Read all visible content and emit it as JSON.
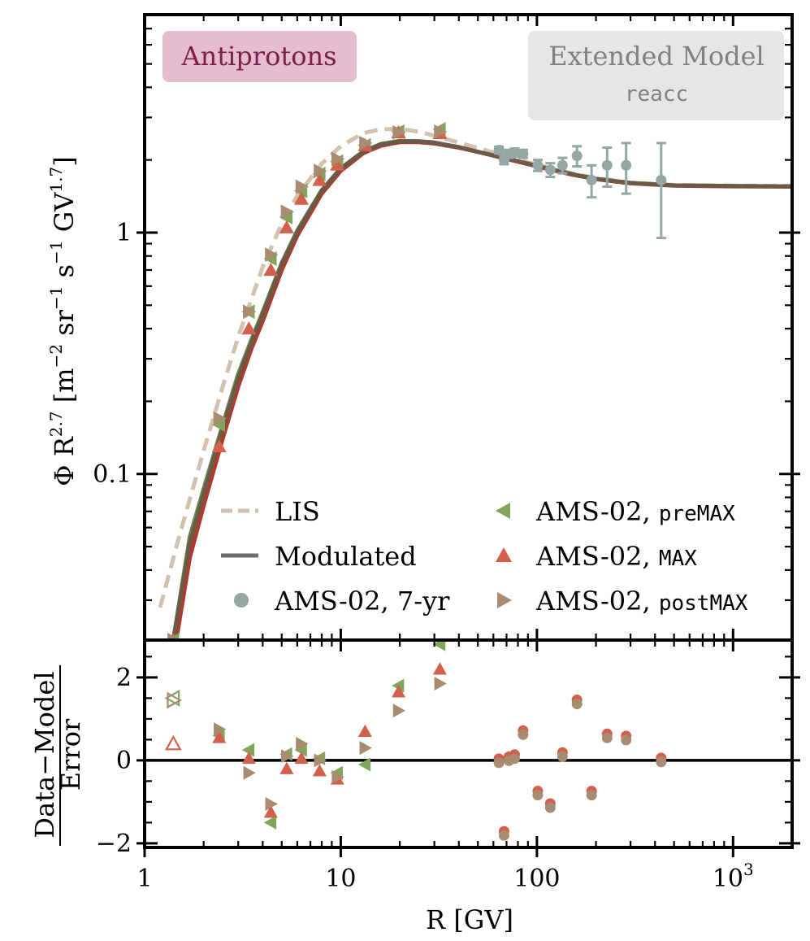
{
  "chart_data": {
    "type": "scatter",
    "badges": {
      "species": "Antiprotons",
      "model_line1": "Extended Model",
      "model_line2": "reacc"
    },
    "colors": {
      "lis": "#d4c0ae",
      "modulated_pre": "#6e8c50",
      "modulated_max": "#b03a2e",
      "modulated_post": "#6b5a48",
      "ams7": "#94a6a6",
      "premax": "#7fa65a",
      "max": "#d2604c",
      "postmax": "#a88c72",
      "badge_species_bg": "#e6bccf",
      "badge_species_fg": "#7a1f48",
      "badge_model_bg": "#e6e6e6",
      "badge_model_fg": "#808080"
    },
    "top_panel": {
      "ylabel": "Φ R^2.7 [m^-2 sr^-1 s^-1 GV^1.7]",
      "yscale": "log",
      "ylim": [
        0.0205,
        8.0
      ],
      "y_tick_labels": [
        "0.1",
        "1"
      ],
      "y_tick_values": [
        0.1,
        1
      ]
    },
    "bottom_panel": {
      "ylabel": "Data−Model / Error",
      "ylabel_numerator": "Data−Model",
      "ylabel_denominator": "Error",
      "ylim": [
        -2.1,
        2.9
      ],
      "y_tick_labels": [
        "−2",
        "0",
        "2"
      ],
      "y_tick_values": [
        -2,
        0,
        2
      ]
    },
    "xaxis": {
      "label": "R [GV]",
      "scale": "log",
      "xlim": [
        1,
        2000
      ],
      "tick_labels": [
        "1",
        "10",
        "100",
        "10^3"
      ],
      "tick_values": [
        1,
        10,
        100,
        1000
      ]
    },
    "legend": {
      "lis": "LIS",
      "modulated": "Modulated",
      "ams7": "AMS-02, 7-yr",
      "premax_prefix": "AMS-02, ",
      "premax_tag": "preMAX",
      "max_prefix": "AMS-02, ",
      "max_tag": "MAX",
      "postmax_prefix": "AMS-02, ",
      "postmax_tag": "postMAX"
    },
    "series": [
      {
        "name": "LIS",
        "kind": "curve",
        "style": "dashed",
        "x": [
          1.2,
          1.5,
          2,
          2.5,
          3,
          4,
          5,
          6,
          8,
          10,
          13,
          16,
          20,
          25,
          30,
          40,
          50,
          70,
          100,
          150,
          200,
          300,
          500,
          1000,
          2000
        ],
        "y": [
          0.028,
          0.055,
          0.125,
          0.23,
          0.37,
          0.72,
          1.09,
          1.42,
          1.93,
          2.28,
          2.58,
          2.68,
          2.69,
          2.62,
          2.52,
          2.36,
          2.24,
          2.07,
          1.91,
          1.76,
          1.68,
          1.61,
          1.575,
          1.565,
          1.56
        ]
      },
      {
        "name": "Modulated",
        "kind": "curve",
        "variant": "pre",
        "x": [
          1.4,
          1.7,
          2,
          2.5,
          3,
          3.5,
          4,
          5,
          6,
          8,
          10,
          13,
          16,
          20,
          25,
          30,
          40,
          50,
          70,
          100,
          150,
          200,
          300,
          500,
          1000,
          2000
        ],
        "y": [
          0.0205,
          0.055,
          0.087,
          0.16,
          0.26,
          0.36,
          0.47,
          0.75,
          1.02,
          1.5,
          1.85,
          2.17,
          2.33,
          2.4,
          2.39,
          2.36,
          2.26,
          2.16,
          2.03,
          1.89,
          1.75,
          1.67,
          1.605,
          1.57,
          1.56,
          1.555
        ]
      },
      {
        "name": "Modulated",
        "kind": "curve",
        "variant": "max",
        "x": [
          1.45,
          1.7,
          2,
          2.5,
          3,
          3.5,
          4,
          5,
          6,
          8,
          10,
          13,
          16,
          20,
          25,
          30,
          40,
          50,
          70,
          100,
          150,
          200,
          300,
          500,
          1000,
          2000
        ],
        "y": [
          0.0205,
          0.045,
          0.074,
          0.14,
          0.23,
          0.33,
          0.43,
          0.7,
          0.97,
          1.45,
          1.8,
          2.13,
          2.29,
          2.37,
          2.37,
          2.34,
          2.25,
          2.16,
          2.02,
          1.88,
          1.74,
          1.665,
          1.6,
          1.565,
          1.555,
          1.55
        ]
      },
      {
        "name": "Modulated",
        "kind": "curve",
        "variant": "post",
        "x": [
          1.4,
          1.7,
          2,
          2.5,
          3,
          3.5,
          4,
          5,
          6,
          8,
          10,
          13,
          16,
          20,
          25,
          30,
          40,
          50,
          70,
          100,
          150,
          200,
          300,
          500,
          1000,
          2000
        ],
        "y": [
          0.0205,
          0.052,
          0.083,
          0.155,
          0.25,
          0.35,
          0.46,
          0.74,
          1.01,
          1.49,
          1.84,
          2.16,
          2.32,
          2.39,
          2.39,
          2.36,
          2.26,
          2.16,
          2.03,
          1.89,
          1.75,
          1.67,
          1.605,
          1.57,
          1.56,
          1.555
        ]
      },
      {
        "name": "AMS-02, 7-yr",
        "kind": "points",
        "marker": "circle",
        "x": [
          64,
          68,
          72,
          77,
          85,
          101,
          117,
          135,
          160,
          190,
          228,
          285,
          430
        ],
        "y": [
          2.2,
          2.0,
          2.12,
          2.15,
          2.12,
          1.9,
          1.82,
          1.9,
          2.08,
          1.65,
          1.9,
          1.9,
          1.65
        ],
        "err": [
          0.07,
          0.08,
          0.08,
          0.08,
          0.08,
          0.1,
          0.12,
          0.14,
          0.2,
          0.25,
          0.35,
          0.45,
          0.7
        ],
        "residual": [
          0.0,
          -1.75,
          0.05,
          0.1,
          0.68,
          -0.78,
          -1.08,
          0.15,
          1.42,
          -0.78,
          0.6,
          0.55,
          0.02
        ]
      },
      {
        "name": "AMS-02, preMAX",
        "kind": "points",
        "marker": "triangle-left",
        "x": [
          1.4,
          2.4,
          3.4,
          4.4,
          5.3,
          6.3,
          7.8,
          9.6,
          13.3,
          19.7,
          32
        ],
        "y": [
          0.0205,
          0.16,
          0.47,
          0.78,
          1.16,
          1.49,
          1.75,
          1.97,
          2.3,
          2.62,
          2.68
        ],
        "residual": [
          1.5,
          0.6,
          0.25,
          -1.5,
          0.15,
          0.25,
          0.05,
          -0.3,
          -0.1,
          1.8,
          2.8
        ]
      },
      {
        "name": "AMS-02, MAX",
        "kind": "points",
        "marker": "triangle-up",
        "x": [
          1.4,
          2.4,
          3.4,
          4.4,
          5.3,
          6.3,
          7.8,
          9.6,
          13.3,
          19.7,
          32
        ],
        "y": [
          0.0205,
          0.13,
          0.4,
          0.7,
          1.05,
          1.38,
          1.65,
          1.91,
          2.3,
          2.6,
          2.58
        ],
        "residual": [
          0.4,
          0.55,
          0.05,
          -1.25,
          -0.2,
          0.05,
          -0.25,
          -0.45,
          0.7,
          1.65,
          2.2
        ]
      },
      {
        "name": "AMS-02, postMAX",
        "kind": "points",
        "marker": "triangle-right",
        "x": [
          1.4,
          2.4,
          3.4,
          4.4,
          5.3,
          6.3,
          7.8,
          9.6,
          13.3,
          19.7,
          32
        ],
        "y": [
          0.0205,
          0.17,
          0.47,
          0.81,
          1.22,
          1.55,
          1.8,
          2.02,
          2.35,
          2.6,
          2.62
        ],
        "residual": [
          1.45,
          0.75,
          -0.3,
          -1.05,
          0.1,
          0.4,
          0.0,
          -0.4,
          0.3,
          1.2,
          1.85
        ]
      }
    ]
  }
}
